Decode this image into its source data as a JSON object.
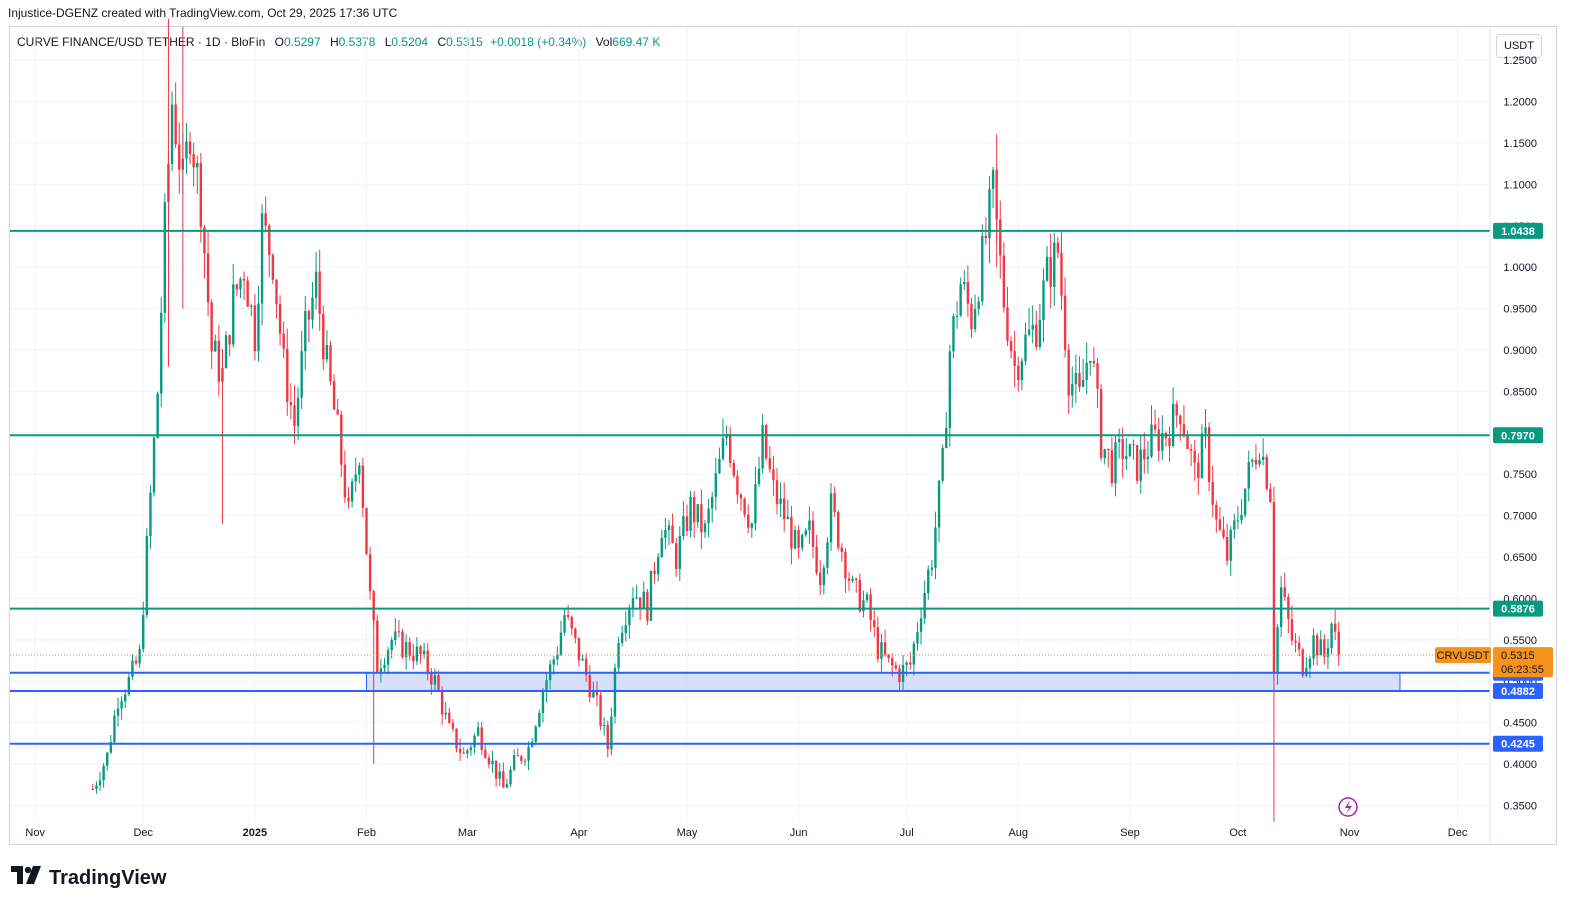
{
  "attribution": "Injustice-DGENZ created with TradingView.com, Oct 29, 2025 17:36 UTC",
  "legend": {
    "symbol": "CURVE FINANCE/USD TETHER · 1D · BloFin",
    "open_label": "O",
    "open": "0.5297",
    "high_label": "H",
    "high": "0.5378",
    "low_label": "L",
    "low": "0.5204",
    "close_label": "C",
    "close": "0.5315",
    "change": "+0.0018 (+0.34%)",
    "vol_label": "Vol",
    "vol": "669.47 K"
  },
  "currency": "USDT",
  "brand": "TradingView",
  "colors": {
    "up": "#089981",
    "down": "#f23645",
    "level_green": "#089981",
    "level_blue": "#2962ff",
    "zone_fill": "#c5d3f8",
    "price_tag": "#f7931a"
  },
  "chart_data": {
    "type": "candlestick",
    "ylim": [
      0.33,
      1.29
    ],
    "y_ticks": [
      0.35,
      0.4,
      0.45,
      0.5,
      0.55,
      0.6,
      0.65,
      0.7,
      0.75,
      0.8,
      0.85,
      0.9,
      0.95,
      1.0,
      1.05,
      1.1,
      1.15,
      1.2,
      1.25
    ],
    "y_tick_labels": [
      "0.3500",
      "0.4000",
      "0.4500",
      "0.5000",
      "0.5500",
      "0.6000",
      "0.6500",
      "0.7000",
      "0.7500",
      "0.8000",
      "0.8500",
      "0.9000",
      "0.9500",
      "1.0000",
      "1.0500",
      "1.1000",
      "1.1500",
      "1.2000",
      "1.2500"
    ],
    "x_labels": [
      "Nov",
      "Dec",
      "2025",
      "Feb",
      "Mar",
      "Apr",
      "May",
      "Jun",
      "Jul",
      "Aug",
      "Sep",
      "Oct",
      "Nov",
      "Dec"
    ],
    "x_label_dates": [
      "2024-11-01",
      "2024-12-01",
      "2025-01-01",
      "2025-02-01",
      "2025-03-01",
      "2025-04-01",
      "2025-05-01",
      "2025-06-01",
      "2025-07-01",
      "2025-08-01",
      "2025-09-01",
      "2025-10-01",
      "2025-11-01",
      "2025-12-01"
    ],
    "x_range": [
      "2024-10-25",
      "2025-12-10"
    ],
    "horizontal_levels": [
      {
        "value": 1.0438,
        "label": "1.0438",
        "color": "green"
      },
      {
        "value": 0.797,
        "label": "0.7970",
        "color": "green"
      },
      {
        "value": 0.5876,
        "label": "0.5876",
        "color": "green"
      },
      {
        "value": 0.5103,
        "label": "0.5103",
        "color": "blue"
      },
      {
        "value": 0.4882,
        "label": "0.4882",
        "color": "blue"
      },
      {
        "value": 0.4245,
        "label": "0.4245",
        "color": "blue"
      }
    ],
    "zone": {
      "top": 0.5103,
      "bottom": 0.4882,
      "start": "2025-02-01",
      "end": "2025-11-15"
    },
    "last_price": {
      "symbol": "CRVUSDT",
      "value": "0.5315",
      "countdown": "06:23:55"
    },
    "close_path": [
      [
        "2024-11-17",
        0.37
      ],
      [
        "2024-11-21",
        0.41
      ],
      [
        "2024-11-24",
        0.48
      ],
      [
        "2024-11-27",
        0.5
      ],
      [
        "2024-11-30",
        0.53
      ],
      [
        "2024-12-02",
        0.66
      ],
      [
        "2024-12-05",
        0.85
      ],
      [
        "2024-12-07",
        1.05
      ],
      [
        "2024-12-09",
        1.2
      ],
      [
        "2024-12-12",
        1.1
      ],
      [
        "2024-12-14",
        1.17
      ],
      [
        "2024-12-17",
        1.08
      ],
      [
        "2024-12-20",
        0.9
      ],
      [
        "2024-12-23",
        0.87
      ],
      [
        "2024-12-26",
        0.96
      ],
      [
        "2024-12-29",
        1.0
      ],
      [
        "2025-01-01",
        0.92
      ],
      [
        "2025-01-03",
        1.05
      ],
      [
        "2025-01-06",
        1.01
      ],
      [
        "2025-01-09",
        0.88
      ],
      [
        "2025-01-12",
        0.81
      ],
      [
        "2025-01-15",
        0.92
      ],
      [
        "2025-01-18",
        0.98
      ],
      [
        "2025-01-21",
        0.88
      ],
      [
        "2025-01-24",
        0.8
      ],
      [
        "2025-01-27",
        0.7
      ],
      [
        "2025-01-30",
        0.78
      ],
      [
        "2025-02-02",
        0.6
      ],
      [
        "2025-02-04",
        0.52
      ],
      [
        "2025-02-08",
        0.55
      ],
      [
        "2025-02-12",
        0.54
      ],
      [
        "2025-02-16",
        0.53
      ],
      [
        "2025-02-20",
        0.5
      ],
      [
        "2025-02-24",
        0.44
      ],
      [
        "2025-02-28",
        0.41
      ],
      [
        "2025-03-04",
        0.44
      ],
      [
        "2025-03-08",
        0.4
      ],
      [
        "2025-03-11",
        0.37
      ],
      [
        "2025-03-14",
        0.4
      ],
      [
        "2025-03-18",
        0.42
      ],
      [
        "2025-03-22",
        0.49
      ],
      [
        "2025-03-26",
        0.54
      ],
      [
        "2025-03-28",
        0.58
      ],
      [
        "2025-04-02",
        0.52
      ],
      [
        "2025-04-06",
        0.47
      ],
      [
        "2025-04-09",
        0.42
      ],
      [
        "2025-04-12",
        0.56
      ],
      [
        "2025-04-16",
        0.61
      ],
      [
        "2025-04-20",
        0.59
      ],
      [
        "2025-04-24",
        0.69
      ],
      [
        "2025-04-28",
        0.65
      ],
      [
        "2025-05-02",
        0.71
      ],
      [
        "2025-05-06",
        0.68
      ],
      [
        "2025-05-09",
        0.74
      ],
      [
        "2025-05-12",
        0.8
      ],
      [
        "2025-05-15",
        0.74
      ],
      [
        "2025-05-19",
        0.69
      ],
      [
        "2025-05-22",
        0.79
      ],
      [
        "2025-05-25",
        0.73
      ],
      [
        "2025-05-29",
        0.69
      ],
      [
        "2025-06-01",
        0.65
      ],
      [
        "2025-06-04",
        0.68
      ],
      [
        "2025-06-07",
        0.63
      ],
      [
        "2025-06-10",
        0.71
      ],
      [
        "2025-06-13",
        0.66
      ],
      [
        "2025-06-16",
        0.61
      ],
      [
        "2025-06-20",
        0.59
      ],
      [
        "2025-06-23",
        0.54
      ],
      [
        "2025-06-26",
        0.52
      ],
      [
        "2025-06-29",
        0.51
      ],
      [
        "2025-07-02",
        0.52
      ],
      [
        "2025-07-05",
        0.59
      ],
      [
        "2025-07-08",
        0.65
      ],
      [
        "2025-07-11",
        0.76
      ],
      [
        "2025-07-13",
        0.9
      ],
      [
        "2025-07-16",
        0.98
      ],
      [
        "2025-07-19",
        0.94
      ],
      [
        "2025-07-22",
        1.01
      ],
      [
        "2025-07-25",
        1.09
      ],
      [
        "2025-07-28",
        0.96
      ],
      [
        "2025-07-31",
        0.88
      ],
      [
        "2025-08-03",
        0.91
      ],
      [
        "2025-08-06",
        0.93
      ],
      [
        "2025-08-09",
        0.99
      ],
      [
        "2025-08-12",
        1.02
      ],
      [
        "2025-08-15",
        0.87
      ],
      [
        "2025-08-18",
        0.84
      ],
      [
        "2025-08-21",
        0.91
      ],
      [
        "2025-08-24",
        0.79
      ],
      [
        "2025-08-27",
        0.76
      ],
      [
        "2025-08-30",
        0.78
      ],
      [
        "2025-09-03",
        0.76
      ],
      [
        "2025-09-07",
        0.79
      ],
      [
        "2025-09-11",
        0.8
      ],
      [
        "2025-09-15",
        0.83
      ],
      [
        "2025-09-19",
        0.75
      ],
      [
        "2025-09-22",
        0.79
      ],
      [
        "2025-09-25",
        0.69
      ],
      [
        "2025-09-28",
        0.65
      ],
      [
        "2025-10-01",
        0.7
      ],
      [
        "2025-10-04",
        0.75
      ],
      [
        "2025-10-07",
        0.79
      ],
      [
        "2025-10-10",
        0.73
      ],
      [
        "2025-10-11",
        0.52
      ],
      [
        "2025-10-13",
        0.61
      ],
      [
        "2025-10-16",
        0.55
      ],
      [
        "2025-10-19",
        0.52
      ],
      [
        "2025-10-22",
        0.55
      ],
      [
        "2025-10-25",
        0.53
      ],
      [
        "2025-10-27",
        0.57
      ],
      [
        "2025-10-29",
        0.5315
      ]
    ],
    "spike_wicks": [
      {
        "date": "2024-12-08",
        "high": 1.3,
        "low": 0.88
      },
      {
        "date": "2024-12-12",
        "high": 1.29,
        "low": 0.95
      },
      {
        "date": "2024-12-23",
        "high": 0.9,
        "low": 0.69
      },
      {
        "date": "2025-02-03",
        "high": 0.6,
        "low": 0.4
      },
      {
        "date": "2025-10-11",
        "high": 0.58,
        "low": 0.33
      },
      {
        "date": "2025-07-26",
        "high": 1.16,
        "low": 1.0
      }
    ]
  }
}
